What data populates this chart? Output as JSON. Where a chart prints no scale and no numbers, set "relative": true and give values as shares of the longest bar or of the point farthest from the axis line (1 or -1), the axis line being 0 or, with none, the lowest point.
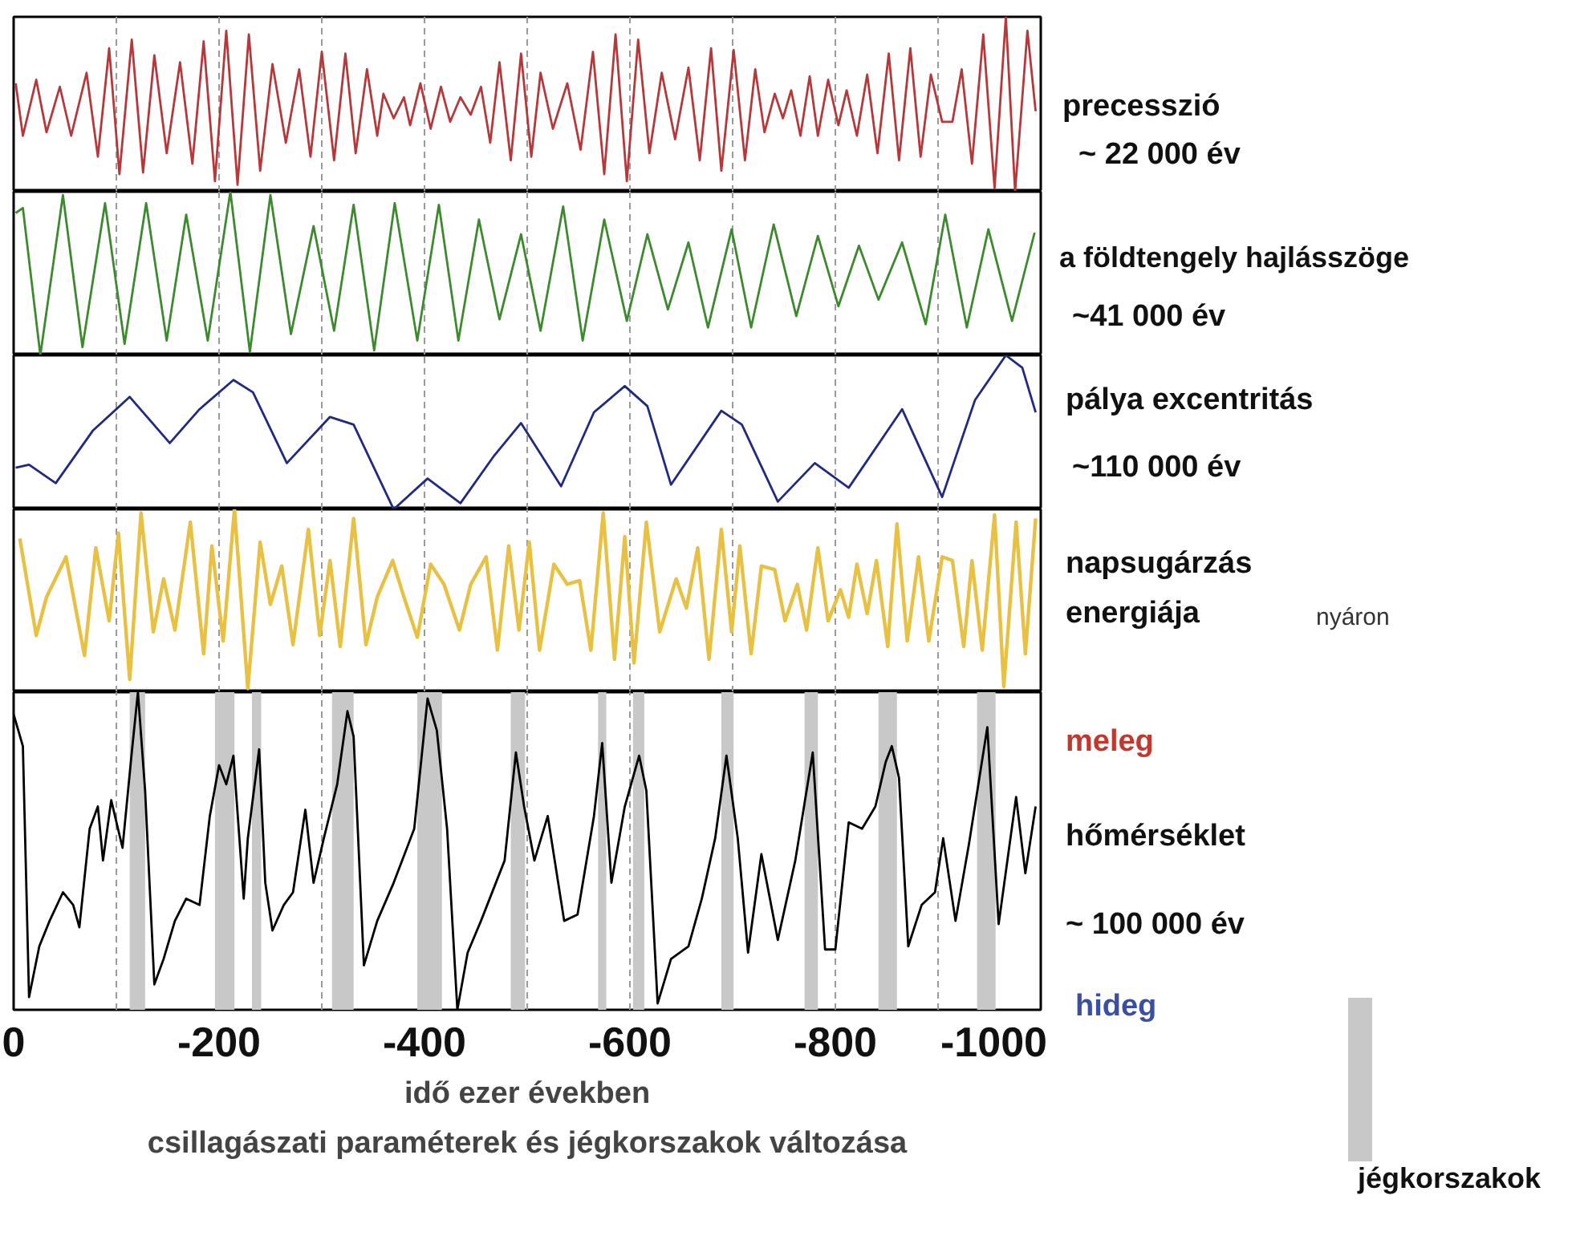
{
  "chart_data": [
    {
      "type": "line",
      "relative": true,
      "xlim": [
        0,
        -1000
      ],
      "xticks": [
        0,
        {
          "value": -100,
          "label": null
        },
        -200,
        {
          "value": -300,
          "label": null
        },
        -400,
        {
          "value": -500,
          "label": null
        },
        -600,
        {
          "value": -700,
          "label": null
        },
        -800,
        {
          "value": -900,
          "label": null
        },
        -1000
      ],
      "grid": "x",
      "tick_labels": false,
      "annotations": [
        "precesszió",
        "~ 22 000 év"
      ],
      "series": [
        {
          "color": "#b5393b",
          "x": [
            -2,
            -9,
            -22,
            -32,
            -45,
            -56,
            -71,
            -82,
            -93,
            -103,
            -115,
            -126,
            -137,
            -149,
            -162,
            -174,
            -185,
            -196,
            -207,
            -218,
            -229,
            -240,
            -252,
            -265,
            -278,
            -289,
            -300,
            -312,
            -323,
            -333,
            -344,
            -354,
            -360,
            -370,
            -380,
            -386,
            -396,
            -406,
            -416,
            -425,
            -435,
            -445,
            -455,
            -464,
            -473,
            -484,
            -494,
            -504,
            -513,
            -525,
            -539,
            -552,
            -564,
            -575,
            -586,
            -597,
            -608,
            -619,
            -631,
            -644,
            -657,
            -668,
            -679,
            -689,
            -701,
            -712,
            -722,
            -731,
            -741,
            -749,
            -757,
            -766,
            -775,
            -783,
            -793,
            -803,
            -811,
            -821,
            -831,
            -841,
            -852,
            -862,
            -873,
            -883,
            -893,
            -904,
            -914,
            -923,
            -933,
            -944,
            -955,
            -966,
            -975,
            -987,
            -995
          ],
          "values": [
            0.62,
            0.32,
            0.64,
            0.34,
            0.6,
            0.32,
            0.68,
            0.2,
            0.82,
            0.1,
            0.87,
            0.11,
            0.78,
            0.22,
            0.74,
            0.16,
            0.86,
            0.06,
            0.92,
            0.04,
            0.9,
            0.12,
            0.73,
            0.28,
            0.7,
            0.2,
            0.8,
            0.18,
            0.79,
            0.22,
            0.7,
            0.32,
            0.56,
            0.42,
            0.54,
            0.38,
            0.62,
            0.36,
            0.6,
            0.4,
            0.54,
            0.44,
            0.6,
            0.28,
            0.74,
            0.18,
            0.79,
            0.2,
            0.68,
            0.36,
            0.62,
            0.24,
            0.8,
            0.1,
            0.9,
            0.06,
            0.87,
            0.22,
            0.68,
            0.3,
            0.71,
            0.18,
            0.82,
            0.12,
            0.81,
            0.18,
            0.7,
            0.34,
            0.56,
            0.42,
            0.58,
            0.32,
            0.66,
            0.32,
            0.64,
            0.38,
            0.58,
            0.32,
            0.67,
            0.22,
            0.79,
            0.18,
            0.82,
            0.2,
            0.67,
            0.4,
            0.4,
            0.7,
            0.16,
            0.9,
            0.02,
            1.0,
            0.0,
            0.92,
            0.46
          ]
        }
      ]
    },
    {
      "type": "line",
      "relative": true,
      "xlim": [
        0,
        -1000
      ],
      "xticks": [
        0,
        {
          "value": -100,
          "label": null
        },
        -200,
        {
          "value": -300,
          "label": null
        },
        -400,
        {
          "value": -500,
          "label": null
        },
        -600,
        {
          "value": -700,
          "label": null
        },
        -800,
        {
          "value": -900,
          "label": null
        },
        -1000
      ],
      "grid": "x",
      "tick_labels": false,
      "annotations": [
        "a földtengely hajlásszöge",
        "~41 000 év"
      ],
      "series": [
        {
          "color": "#3d8a2e",
          "x": [
            -2,
            -9,
            -26,
            -48,
            -67,
            -89,
            -108,
            -129,
            -149,
            -168,
            -189,
            -211,
            -230,
            -250,
            -270,
            -292,
            -312,
            -331,
            -351,
            -371,
            -393,
            -414,
            -433,
            -453,
            -473,
            -494,
            -513,
            -535,
            -554,
            -575,
            -597,
            -617,
            -637,
            -657,
            -676,
            -699,
            -718,
            -740,
            -762,
            -783,
            -803,
            -823,
            -842,
            -865,
            -888,
            -907,
            -928,
            -949,
            -972,
            -994
          ],
          "values": [
            0.87,
            0.9,
            0.0,
            0.98,
            0.05,
            0.93,
            0.07,
            0.93,
            0.09,
            0.86,
            0.09,
            1.0,
            0.02,
            0.98,
            0.13,
            0.79,
            0.15,
            0.92,
            0.03,
            0.93,
            0.09,
            0.92,
            0.09,
            0.83,
            0.22,
            0.74,
            0.15,
            0.91,
            0.09,
            0.83,
            0.21,
            0.74,
            0.28,
            0.69,
            0.17,
            0.77,
            0.17,
            0.8,
            0.24,
            0.73,
            0.3,
            0.67,
            0.34,
            0.69,
            0.19,
            0.86,
            0.17,
            0.77,
            0.21,
            0.75
          ]
        }
      ]
    },
    {
      "type": "line",
      "relative": true,
      "xlim": [
        0,
        -1000
      ],
      "xticks": [
        0,
        {
          "value": -100,
          "label": null
        },
        -200,
        {
          "value": -300,
          "label": null
        },
        -400,
        {
          "value": -500,
          "label": null
        },
        -600,
        {
          "value": -700,
          "label": null
        },
        -800,
        {
          "value": -900,
          "label": null
        },
        -1000
      ],
      "grid": "x",
      "tick_labels": false,
      "annotations": [
        "pálya excentritás",
        "~110 000 év"
      ],
      "series": [
        {
          "color": "#1f2a80",
          "x": [
            -2,
            -15,
            -41,
            -77,
            -113,
            -152,
            -181,
            -214,
            -233,
            -266,
            -308,
            -331,
            -370,
            -403,
            -435,
            -468,
            -494,
            -533,
            -565,
            -595,
            -617,
            -640,
            -689,
            -709,
            -744,
            -780,
            -813,
            -865,
            -904,
            -936,
            -966,
            -982,
            -995
          ],
          "values": [
            0.27,
            0.29,
            0.17,
            0.51,
            0.73,
            0.43,
            0.65,
            0.84,
            0.76,
            0.3,
            0.6,
            0.55,
            0.0,
            0.2,
            0.04,
            0.35,
            0.56,
            0.15,
            0.63,
            0.8,
            0.67,
            0.16,
            0.64,
            0.55,
            0.05,
            0.3,
            0.14,
            0.65,
            0.08,
            0.71,
            1.0,
            0.92,
            0.63
          ]
        }
      ]
    },
    {
      "type": "line",
      "relative": true,
      "xlim": [
        0,
        -1000
      ],
      "xticks": [
        0,
        {
          "value": -100,
          "label": null
        },
        -200,
        {
          "value": -300,
          "label": null
        },
        -400,
        {
          "value": -500,
          "label": null
        },
        -600,
        {
          "value": -700,
          "label": null
        },
        -800,
        {
          "value": -900,
          "label": null
        },
        -1000
      ],
      "grid": "x",
      "tick_labels": false,
      "annotations": [
        "napsugárzás",
        "energiája",
        "nyáron"
      ],
      "series": [
        {
          "color": "#e8c042",
          "x": [
            -6,
            -22,
            -32,
            -51,
            -69,
            -80,
            -93,
            -102,
            -113,
            -124,
            -136,
            -146,
            -157,
            -172,
            -185,
            -193,
            -204,
            -215,
            -228,
            -240,
            -250,
            -261,
            -272,
            -287,
            -298,
            -308,
            -318,
            -331,
            -343,
            -354,
            -369,
            -380,
            -393,
            -406,
            -419,
            -434,
            -445,
            -460,
            -471,
            -482,
            -492,
            -502,
            -512,
            -526,
            -539,
            -551,
            -562,
            -574,
            -585,
            -595,
            -604,
            -616,
            -629,
            -645,
            -655,
            -666,
            -677,
            -689,
            -699,
            -707,
            -718,
            -728,
            -741,
            -751,
            -763,
            -772,
            -783,
            -793,
            -805,
            -813,
            -821,
            -831,
            -840,
            -851,
            -860,
            -870,
            -881,
            -891,
            -904,
            -914,
            -925,
            -933,
            -943,
            -955,
            -964,
            -976,
            -985,
            -995
          ],
          "values": [
            0.84,
            0.31,
            0.52,
            0.74,
            0.2,
            0.79,
            0.39,
            0.87,
            0.07,
            0.98,
            0.33,
            0.62,
            0.34,
            0.93,
            0.21,
            0.8,
            0.28,
            1.0,
            0.02,
            0.82,
            0.48,
            0.69,
            0.26,
            0.89,
            0.31,
            0.72,
            0.25,
            0.95,
            0.26,
            0.52,
            0.72,
            0.52,
            0.3,
            0.7,
            0.59,
            0.34,
            0.59,
            0.74,
            0.23,
            0.8,
            0.34,
            0.82,
            0.23,
            0.7,
            0.59,
            0.61,
            0.23,
            0.98,
            0.18,
            0.85,
            0.16,
            0.93,
            0.33,
            0.62,
            0.46,
            0.79,
            0.18,
            0.89,
            0.33,
            0.8,
            0.21,
            0.69,
            0.67,
            0.39,
            0.59,
            0.34,
            0.79,
            0.39,
            0.56,
            0.41,
            0.7,
            0.43,
            0.72,
            0.25,
            0.92,
            0.28,
            0.74,
            0.28,
            0.74,
            0.72,
            0.25,
            0.72,
            0.23,
            0.97,
            0.03,
            0.93,
            0.21,
            0.95
          ]
        }
      ]
    },
    {
      "type": "line",
      "relative": true,
      "xlim": [
        0,
        -1000
      ],
      "xticks": [
        0,
        {
          "value": -100,
          "label": null
        },
        -200,
        {
          "value": -300,
          "label": null
        },
        -400,
        {
          "value": -500,
          "label": null
        },
        -600,
        {
          "value": -700,
          "label": null
        },
        -800,
        {
          "value": -900,
          "label": null
        },
        -1000
      ],
      "grid": "x",
      "tick_labels": "x",
      "xlabel": "idő ezer években",
      "annotations": [
        "meleg",
        "hőmérséklet",
        "~ 100 000 év",
        "hideg",
        "csillagászati paraméterek és jégkorszakok változása",
        "jégkorszakok"
      ],
      "bands": [
        {
          "axis": "x",
          "from": -113,
          "to": -128,
          "color": "#c8c8c8"
        },
        {
          "axis": "x",
          "from": -196,
          "to": -215,
          "color": "#c8c8c8"
        },
        {
          "axis": "x",
          "from": -232,
          "to": -241,
          "color": "#c8c8c8"
        },
        {
          "axis": "x",
          "from": -310,
          "to": -331,
          "color": "#c8c8c8"
        },
        {
          "axis": "x",
          "from": -393,
          "to": -417,
          "color": "#c8c8c8"
        },
        {
          "axis": "x",
          "from": -484,
          "to": -498,
          "color": "#c8c8c8"
        },
        {
          "axis": "x",
          "from": -569,
          "to": -577,
          "color": "#c8c8c8"
        },
        {
          "axis": "x",
          "from": -603,
          "to": -614,
          "color": "#c8c8c8"
        },
        {
          "axis": "x",
          "from": -689,
          "to": -701,
          "color": "#c8c8c8"
        },
        {
          "axis": "x",
          "from": -770,
          "to": -783,
          "color": "#c8c8c8"
        },
        {
          "axis": "x",
          "from": -842,
          "to": -860,
          "color": "#c8c8c8"
        },
        {
          "axis": "x",
          "from": -938,
          "to": -956,
          "color": "#c8c8c8"
        }
      ],
      "series": [
        {
          "color": "#000000",
          "x": [
            0,
            -9,
            -15,
            -25,
            -35,
            -48,
            -58,
            -64,
            -74,
            -82,
            -87,
            -95,
            -106,
            -115,
            -121,
            -128,
            -137,
            -146,
            -157,
            -168,
            -181,
            -191,
            -200,
            -207,
            -214,
            -224,
            -228,
            -239,
            -245,
            -252,
            -263,
            -272,
            -284,
            -292,
            -302,
            -315,
            -325,
            -331,
            -341,
            -354,
            -370,
            -390,
            -403,
            -412,
            -422,
            -432,
            -442,
            -455,
            -478,
            -489,
            -497,
            -507,
            -520,
            -536,
            -549,
            -565,
            -573,
            -582,
            -595,
            -609,
            -616,
            -627,
            -640,
            -657,
            -670,
            -683,
            -694,
            -705,
            -715,
            -728,
            -744,
            -761,
            -778,
            -790,
            -800,
            -813,
            -826,
            -839,
            -849,
            -855,
            -862,
            -871,
            -884,
            -897,
            -905,
            -917,
            -930,
            -948,
            -959,
            -976,
            -985,
            -995
          ],
          "values": [
            0.93,
            0.83,
            0.04,
            0.2,
            0.28,
            0.37,
            0.33,
            0.26,
            0.57,
            0.64,
            0.47,
            0.66,
            0.51,
            0.81,
            1.0,
            0.69,
            0.08,
            0.16,
            0.28,
            0.35,
            0.33,
            0.61,
            0.77,
            0.71,
            0.8,
            0.35,
            0.54,
            0.82,
            0.4,
            0.25,
            0.33,
            0.37,
            0.63,
            0.4,
            0.54,
            0.71,
            0.94,
            0.86,
            0.14,
            0.28,
            0.4,
            0.57,
            0.98,
            0.88,
            0.57,
            0.0,
            0.18,
            0.28,
            0.47,
            0.81,
            0.64,
            0.47,
            0.61,
            0.28,
            0.3,
            0.61,
            0.84,
            0.4,
            0.64,
            0.8,
            0.69,
            0.02,
            0.16,
            0.2,
            0.35,
            0.54,
            0.8,
            0.54,
            0.18,
            0.49,
            0.22,
            0.47,
            0.81,
            0.19,
            0.19,
            0.59,
            0.57,
            0.64,
            0.78,
            0.83,
            0.73,
            0.2,
            0.33,
            0.37,
            0.54,
            0.28,
            0.52,
            0.89,
            0.27,
            0.67,
            0.43,
            0.64
          ]
        }
      ]
    }
  ]
}
